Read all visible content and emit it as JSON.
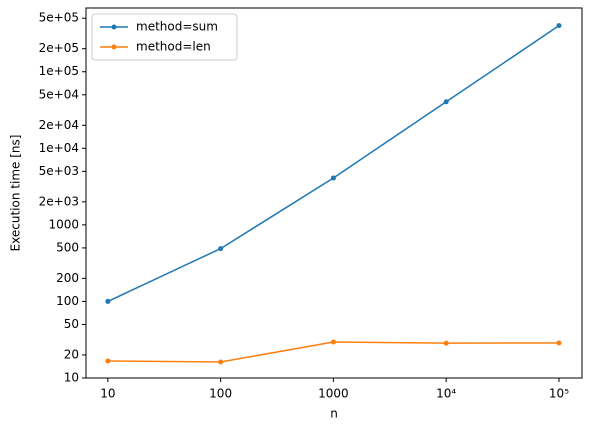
{
  "chart_data": {
    "type": "line",
    "x_label": "n",
    "y_label": "Execution time [ns]",
    "x": [
      10,
      100,
      1000,
      10000,
      100000
    ],
    "series": [
      {
        "name": "method=sum",
        "color": "#1f77b4",
        "values": [
          100,
          490,
          4100,
          40500,
          400000
        ]
      },
      {
        "name": "method=len",
        "color": "#ff7f0e",
        "values": [
          16.7,
          16.2,
          29.5,
          28.5,
          28.7
        ]
      }
    ],
    "xscale": "log",
    "yscale": "log",
    "xlim": [
      6.4,
      160000
    ],
    "ylim": [
      10,
      680000
    ],
    "xticks": [
      10,
      100,
      1000,
      {
        "value": 10000,
        "label": "10⁴"
      },
      {
        "value": 100000,
        "label": "10⁵"
      }
    ],
    "yticks": [
      10,
      20,
      50,
      100,
      200,
      500,
      1000,
      {
        "value": 2000,
        "label": "2e+03"
      },
      {
        "value": 5000,
        "label": "5e+03"
      },
      {
        "value": 10000,
        "label": "1e+04"
      },
      {
        "value": 20000,
        "label": "2e+04"
      },
      {
        "value": 50000,
        "label": "5e+04"
      },
      {
        "value": 100000,
        "label": "1e+05"
      },
      {
        "value": 200000,
        "label": "2e+05"
      },
      {
        "value": 500000,
        "label": "5e+05"
      }
    ],
    "legend": "upper left",
    "grid": false
  }
}
